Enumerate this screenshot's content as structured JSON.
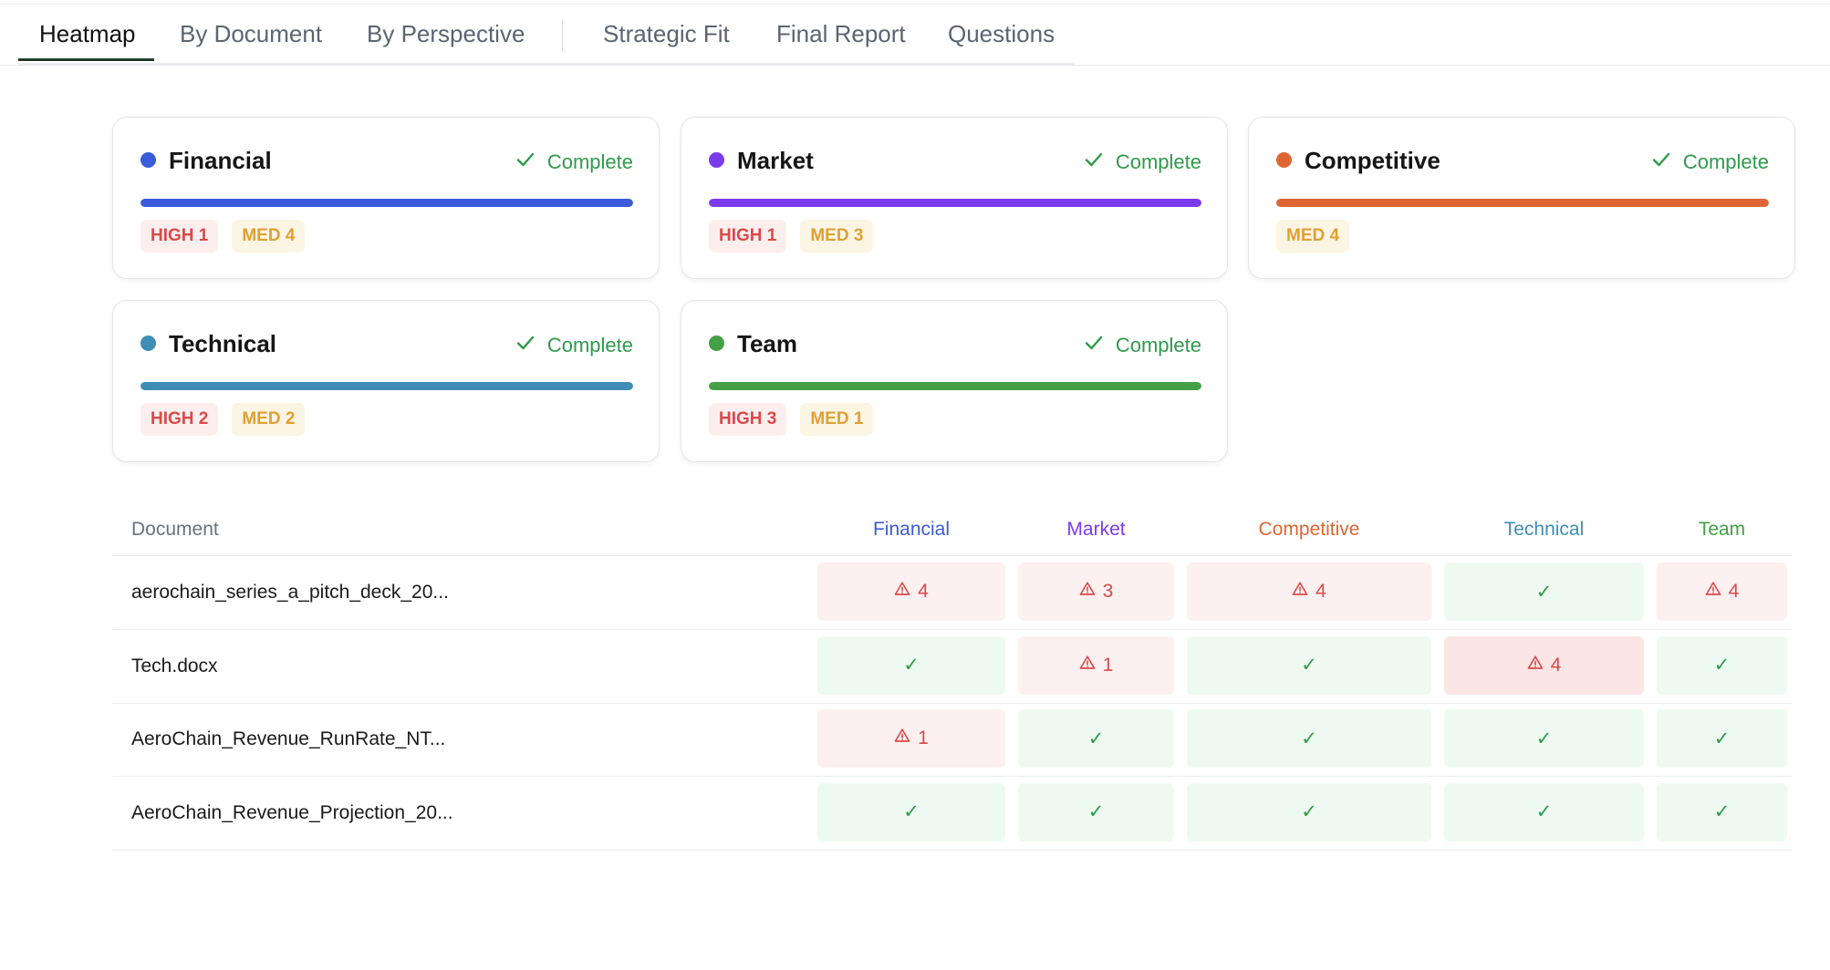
{
  "tabs": {
    "group1": [
      {
        "label": "Heatmap",
        "active": true
      },
      {
        "label": "By Document"
      },
      {
        "label": "By Perspective"
      }
    ],
    "group2": [
      {
        "label": "Strategic Fit"
      },
      {
        "label": "Final Report"
      },
      {
        "label": "Questions"
      }
    ]
  },
  "perspectives": [
    {
      "name": "Financial",
      "status": "Complete",
      "color": "#3b5bdb",
      "progress": 1.0,
      "badges": [
        {
          "label": "HIGH 1",
          "level": "high"
        },
        {
          "label": "MED 4",
          "level": "med"
        }
      ]
    },
    {
      "name": "Market",
      "status": "Complete",
      "color": "#7c3aed",
      "progress": 1.0,
      "badges": [
        {
          "label": "HIGH 1",
          "level": "high"
        },
        {
          "label": "MED 3",
          "level": "med"
        }
      ]
    },
    {
      "name": "Competitive",
      "status": "Complete",
      "color": "#dd6633",
      "progress": 1.0,
      "badges": [
        {
          "label": "MED 4",
          "level": "med"
        }
      ]
    },
    {
      "name": "Technical",
      "status": "Complete",
      "color": "#3f8db5",
      "progress": 1.0,
      "badges": [
        {
          "label": "HIGH 2",
          "level": "high"
        },
        {
          "label": "MED 2",
          "level": "med"
        }
      ]
    },
    {
      "name": "Team",
      "status": "Complete",
      "color": "#43a047",
      "progress": 1.0,
      "badges": [
        {
          "label": "HIGH 3",
          "level": "high"
        },
        {
          "label": "MED 1",
          "level": "med"
        }
      ]
    }
  ],
  "heatmap": {
    "doc_header": "Document",
    "columns": [
      {
        "label": "Financial",
        "color": "#3b5bdb"
      },
      {
        "label": "Market",
        "color": "#7c3aed"
      },
      {
        "label": "Competitive",
        "color": "#dd6633"
      },
      {
        "label": "Technical",
        "color": "#3f8db5"
      },
      {
        "label": "Team",
        "color": "#43a047"
      }
    ],
    "rows": [
      {
        "document": "aerochain_series_a_pitch_deck_20...",
        "cells": [
          {
            "count": "4"
          },
          {
            "count": "3"
          },
          {
            "count": "4"
          },
          {
            "count": null
          },
          {
            "count": "4"
          }
        ]
      },
      {
        "document": "Tech.docx",
        "cells": [
          {
            "count": null
          },
          {
            "count": "1"
          },
          {
            "count": null
          },
          {
            "count": "4"
          },
          {
            "count": null
          }
        ]
      },
      {
        "document": "AeroChain_Revenue_RunRate_NT...",
        "cells": [
          {
            "count": "1"
          },
          {
            "count": null
          },
          {
            "count": null
          },
          {
            "count": null
          },
          {
            "count": null
          }
        ]
      },
      {
        "document": "AeroChain_Revenue_Projection_20...",
        "cells": [
          {
            "count": null
          },
          {
            "count": null
          },
          {
            "count": null
          },
          {
            "count": null
          },
          {
            "count": null
          }
        ]
      }
    ],
    "ok_symbol": "✓"
  }
}
